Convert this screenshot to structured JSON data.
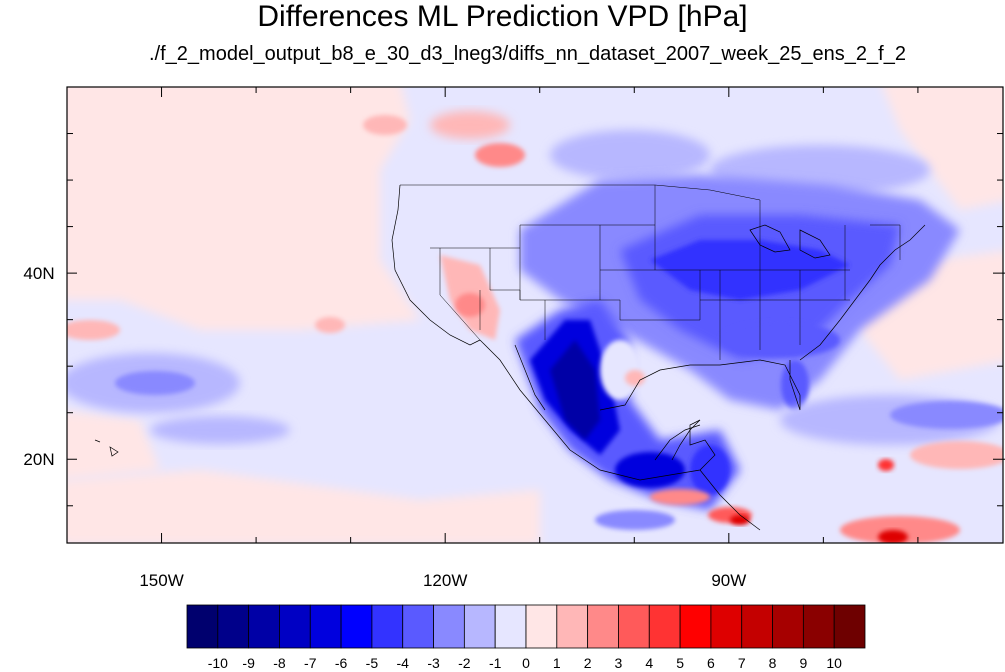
{
  "figure": {
    "title": "Differences ML Prediction VPD [hPa]",
    "subtitle": "./f_2_model_output_b8_e_30_d3_lneg3/diffs_nn_dataset_2007_week_25_ens_2_f_2"
  },
  "map": {
    "projection": "cylindrical equidistant",
    "lon_range": [
      -160,
      -61
    ],
    "lat_range": [
      11,
      60
    ],
    "lon_ticks": [
      {
        "value": -150,
        "label": "150W"
      },
      {
        "value": -120,
        "label": "120W"
      },
      {
        "value": -90,
        "label": "90W"
      }
    ],
    "lat_ticks": [
      {
        "value": 40,
        "label": "40N"
      },
      {
        "value": 20,
        "label": "20N"
      }
    ],
    "features": [
      "coastlines",
      "US state boundaries"
    ]
  },
  "colorbar": {
    "labels": [
      "-10",
      "-9",
      "-8",
      "-7",
      "-6",
      "-5",
      "-4",
      "-3",
      "-2",
      "-1",
      "0",
      "1",
      "2",
      "3",
      "4",
      "5",
      "6",
      "7",
      "8",
      "9",
      "10"
    ],
    "colors": [
      "#00006e",
      "#00008a",
      "#0000a6",
      "#0000c4",
      "#0000de",
      "#0000ff",
      "#3333ff",
      "#5a5aff",
      "#8989ff",
      "#b7b7ff",
      "#e6e6ff",
      "#ffe6e6",
      "#ffb7b7",
      "#ff8989",
      "#ff5a5a",
      "#ff3333",
      "#ff0000",
      "#de0000",
      "#c40000",
      "#a60000",
      "#8a0000",
      "#6e0000"
    ]
  },
  "colors": {
    "ocean_base": "#e6e6ff",
    "positive_light": "#ffe6e6",
    "land_border": "#000000"
  }
}
